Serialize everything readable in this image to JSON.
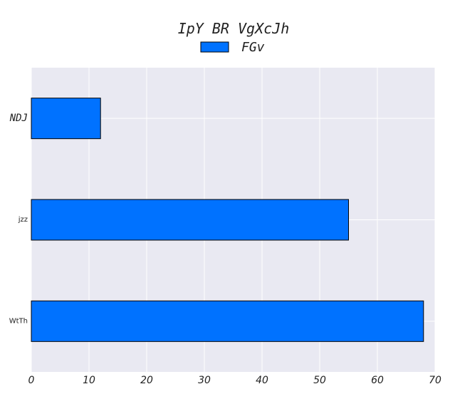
{
  "chart_data": {
    "type": "bar",
    "orientation": "horizontal",
    "title": "IpY BR  VgXcJh",
    "categories": [
      "NDJ",
      "jzz",
      "WtTh"
    ],
    "series": [
      {
        "name": "FGv",
        "values": [
          12,
          55,
          68
        ],
        "color": "#0072ff"
      }
    ],
    "xlim": [
      0,
      70
    ],
    "xticks": [
      0,
      10,
      20,
      30,
      40,
      50,
      60,
      70
    ],
    "grid": true,
    "legend_position": "top-center",
    "plot_background": "#e9e9f2",
    "bar_edge_color": "#000000"
  }
}
